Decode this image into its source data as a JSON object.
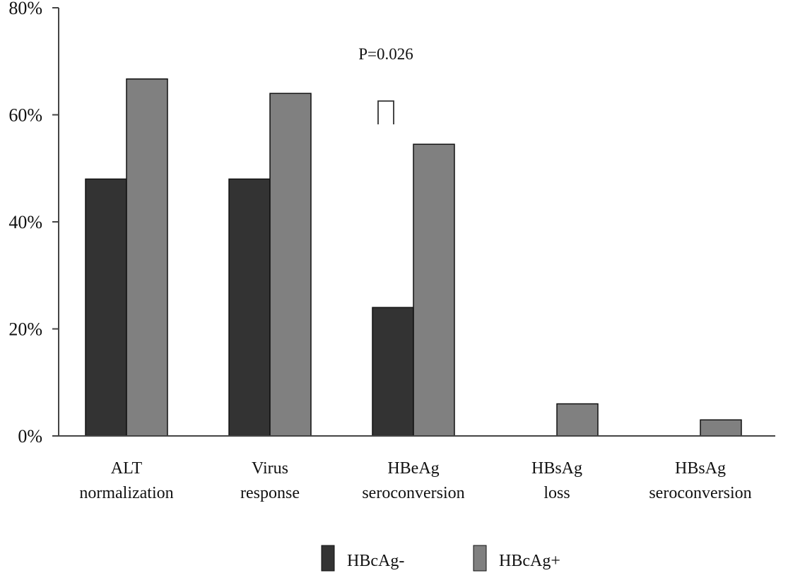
{
  "chart_data": {
    "type": "bar",
    "title": "",
    "xlabel": "",
    "ylabel": "",
    "ylim": [
      0,
      80
    ],
    "yticks": [
      0,
      20,
      40,
      60,
      80
    ],
    "ytick_labels": [
      "0%",
      "20%",
      "40%",
      "60%",
      "80%"
    ],
    "categories": [
      [
        "ALT",
        "normalization"
      ],
      [
        "Virus",
        "response"
      ],
      [
        "HBeAg",
        "seroconversion"
      ],
      [
        "HBsAg",
        "loss"
      ],
      [
        "HBsAg",
        "seroconversion"
      ]
    ],
    "series": [
      {
        "name": "HBcAg-",
        "color": "#333333",
        "values": [
          48,
          48,
          24,
          0,
          0
        ]
      },
      {
        "name": "HBcAg+",
        "color": "#808080",
        "values": [
          66.7,
          64,
          54.5,
          6,
          3
        ]
      }
    ],
    "annotation": {
      "text": "P=0.026",
      "category_index": 2
    },
    "legend_position": "bottom-center",
    "grid": false
  }
}
